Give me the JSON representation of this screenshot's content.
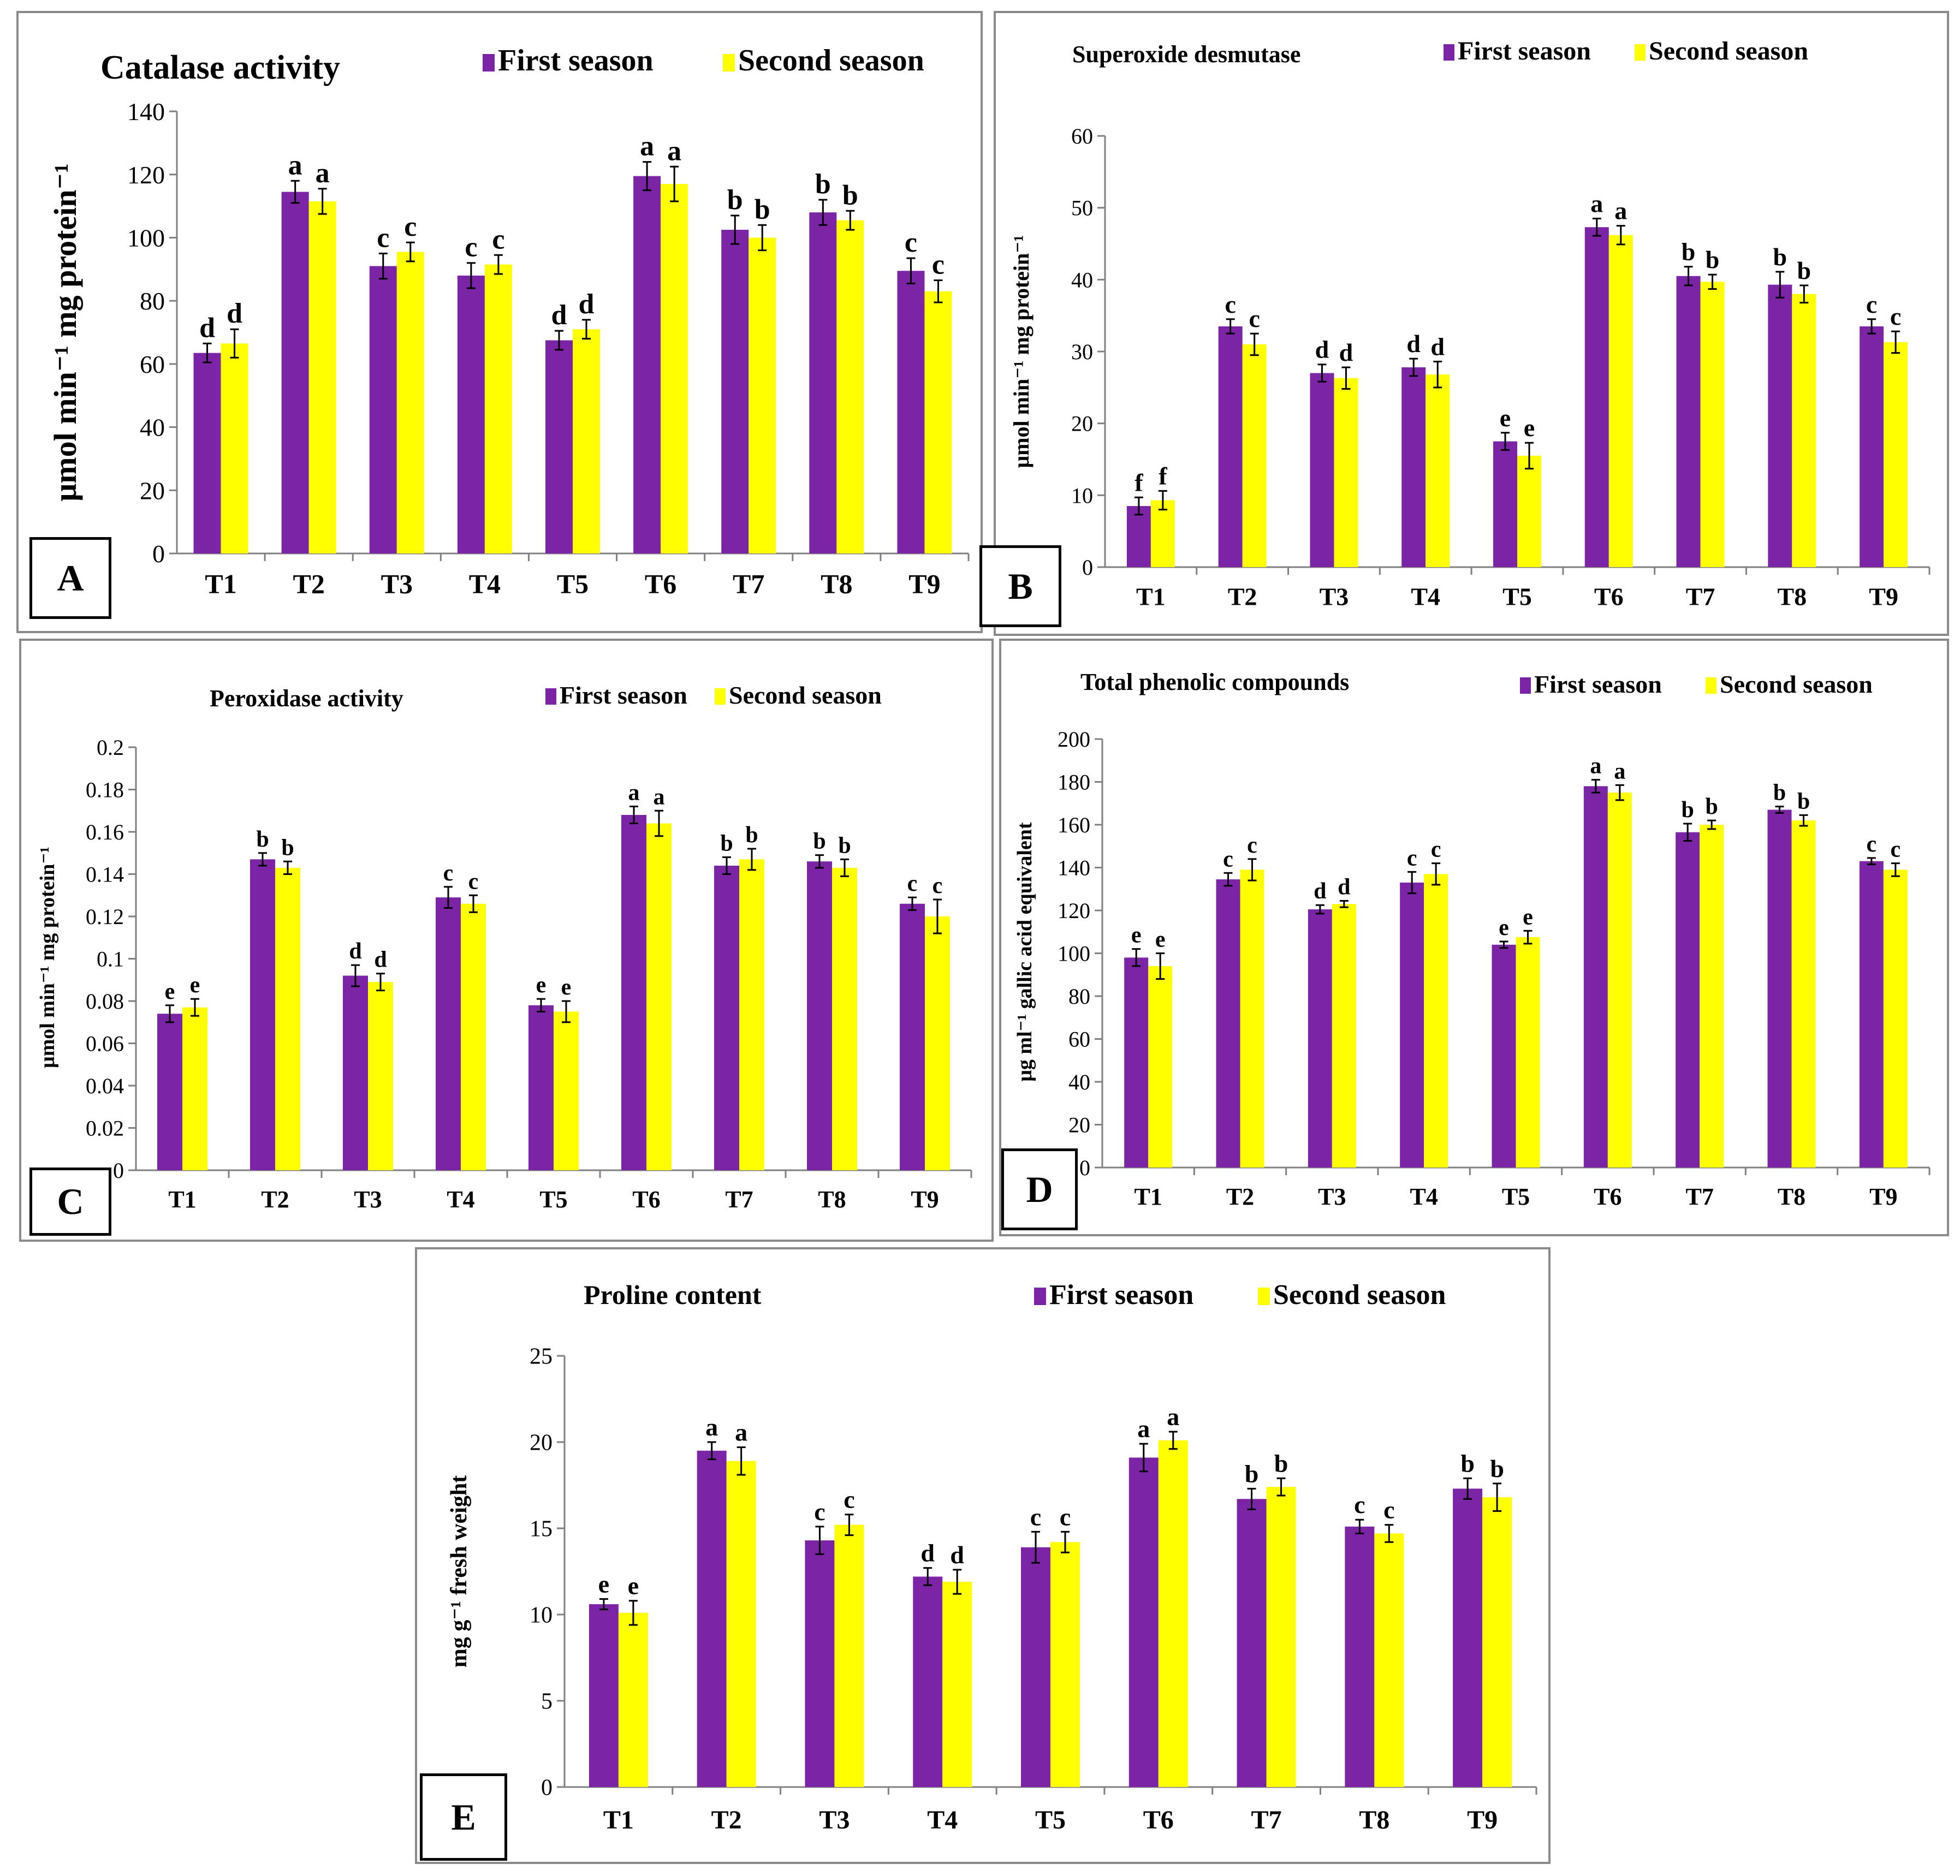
{
  "colors": {
    "first": "#7B24A6",
    "second": "#FFFF00"
  },
  "chart_data": [
    {
      "type": "bar",
      "panel": "A",
      "title": "Catalase activity",
      "ylabel": "μmol min⁻¹ mg protein⁻¹",
      "ylim": [
        0,
        140
      ],
      "yticks": [
        "0",
        "20",
        "40",
        "60",
        "80",
        "100",
        "120",
        "140"
      ],
      "categories": [
        "T1",
        "T2",
        "T3",
        "T4",
        "T5",
        "T6",
        "T7",
        "T8",
        "T9"
      ],
      "series": [
        {
          "name": "First season",
          "values": [
            63.5,
            114.5,
            91,
            88,
            67.5,
            119.5,
            102.5,
            108,
            89.5
          ],
          "errors": [
            3,
            3.5,
            4,
            4,
            3,
            4.5,
            4.5,
            4,
            4
          ],
          "letters": [
            "d",
            "a",
            "c",
            "c",
            "d",
            "a",
            "b",
            "b",
            "c"
          ]
        },
        {
          "name": "Second season",
          "values": [
            66.5,
            111.5,
            95.5,
            91.5,
            71,
            117,
            100,
            105.5,
            83
          ],
          "errors": [
            4.5,
            4,
            3,
            3,
            3,
            5.5,
            4,
            3,
            3.5
          ],
          "letters": [
            "d",
            "a",
            "c",
            "c",
            "d",
            "a",
            "b",
            "b",
            "c"
          ]
        }
      ]
    },
    {
      "type": "bar",
      "panel": "B",
      "title": "Superoxide desmutase",
      "ylabel": "μmol min⁻¹ mg protein⁻¹",
      "ylim": [
        0,
        60
      ],
      "yticks": [
        "0",
        "10",
        "20",
        "30",
        "40",
        "50",
        "60"
      ],
      "categories": [
        "T1",
        "T2",
        "T3",
        "T4",
        "T5",
        "T6",
        "T7",
        "T8",
        "T9"
      ],
      "series": [
        {
          "name": "First season",
          "values": [
            8.5,
            33.5,
            27,
            27.8,
            17.5,
            47.3,
            40.5,
            39.3,
            33.5
          ],
          "errors": [
            1.2,
            1,
            1.2,
            1.2,
            1.2,
            1.2,
            1.3,
            1.8,
            1
          ],
          "letters": [
            "f",
            "c",
            "d",
            "d",
            "e",
            "a",
            "b",
            "b",
            "c"
          ]
        },
        {
          "name": "Second season",
          "values": [
            9.3,
            31,
            26.3,
            26.8,
            15.5,
            46.2,
            39.7,
            38,
            31.3
          ],
          "errors": [
            1.3,
            1.5,
            1.5,
            1.8,
            1.8,
            1.3,
            1,
            1.2,
            1.5
          ],
          "letters": [
            "f",
            "c",
            "d",
            "d",
            "e",
            "a",
            "b",
            "b",
            "c"
          ]
        }
      ]
    },
    {
      "type": "bar",
      "panel": "C",
      "title": "Peroxidase activity",
      "ylabel": "μmol min⁻¹ mg protein⁻¹",
      "ylim": [
        0,
        0.2
      ],
      "yticks": [
        "0",
        "0.02",
        "0.04",
        "0.06",
        "0.08",
        "0.1",
        "0.12",
        "0.14",
        "0.16",
        "0.18",
        "0.2"
      ],
      "categories": [
        "T1",
        "T2",
        "T3",
        "T4",
        "T5",
        "T6",
        "T7",
        "T8",
        "T9"
      ],
      "series": [
        {
          "name": "First season",
          "values": [
            0.074,
            0.147,
            0.092,
            0.129,
            0.078,
            0.168,
            0.144,
            0.146,
            0.126
          ],
          "errors": [
            0.004,
            0.003,
            0.005,
            0.005,
            0.003,
            0.004,
            0.004,
            0.003,
            0.003
          ],
          "letters": [
            "e",
            "b",
            "d",
            "c",
            "e",
            "a",
            "b",
            "b",
            "c"
          ]
        },
        {
          "name": "Second season",
          "values": [
            0.077,
            0.143,
            0.089,
            0.126,
            0.075,
            0.164,
            0.147,
            0.143,
            0.12
          ],
          "errors": [
            0.004,
            0.003,
            0.004,
            0.004,
            0.005,
            0.006,
            0.005,
            0.004,
            0.008
          ],
          "letters": [
            "e",
            "b",
            "d",
            "c",
            "e",
            "a",
            "b",
            "b",
            "c"
          ]
        }
      ]
    },
    {
      "type": "bar",
      "panel": "D",
      "title": "Total phenolic compounds",
      "ylabel": "μg ml⁻¹ gallic acid equivalent",
      "ylim": [
        0,
        200
      ],
      "yticks": [
        "0",
        "20",
        "40",
        "60",
        "80",
        "100",
        "120",
        "140",
        "160",
        "180",
        "200"
      ],
      "categories": [
        "T1",
        "T2",
        "T3",
        "T4",
        "T5",
        "T6",
        "T7",
        "T8",
        "T9"
      ],
      "series": [
        {
          "name": "First season",
          "values": [
            98,
            134.5,
            120.5,
            133,
            104,
            178,
            156.5,
            167,
            143
          ],
          "errors": [
            4,
            3,
            2,
            5,
            1.5,
            3,
            4,
            1.5,
            1.5
          ],
          "letters": [
            "e",
            "c",
            "d",
            "c",
            "e",
            "a",
            "b",
            "b",
            "c"
          ]
        },
        {
          "name": "Second season",
          "values": [
            94,
            139,
            123,
            137,
            107.5,
            175,
            160,
            162,
            139
          ],
          "errors": [
            6,
            5,
            1.5,
            5,
            3,
            3.5,
            2,
            2.5,
            3
          ],
          "letters": [
            "e",
            "c",
            "d",
            "c",
            "e",
            "a",
            "b",
            "b",
            "c"
          ]
        }
      ]
    },
    {
      "type": "bar",
      "panel": "E",
      "title": "Proline content",
      "ylabel": "mg g⁻¹ fresh weight",
      "ylim": [
        0,
        25
      ],
      "yticks": [
        "0",
        "5",
        "10",
        "15",
        "20",
        "25"
      ],
      "categories": [
        "T1",
        "T2",
        "T3",
        "T4",
        "T5",
        "T6",
        "T7",
        "T8",
        "T9"
      ],
      "series": [
        {
          "name": "First season",
          "values": [
            10.6,
            19.5,
            14.3,
            12.2,
            13.9,
            19.1,
            16.7,
            15.1,
            17.3
          ],
          "errors": [
            0.3,
            0.5,
            0.8,
            0.5,
            0.9,
            0.8,
            0.6,
            0.4,
            0.6
          ],
          "letters": [
            "e",
            "a",
            "c",
            "d",
            "c",
            "a",
            "b",
            "c",
            "b"
          ]
        },
        {
          "name": "Second season",
          "values": [
            10.1,
            18.9,
            15.2,
            11.9,
            14.2,
            20.1,
            17.4,
            14.7,
            16.8
          ],
          "errors": [
            0.7,
            0.8,
            0.6,
            0.7,
            0.6,
            0.5,
            0.5,
            0.5,
            0.8
          ],
          "letters": [
            "e",
            "a",
            "c",
            "d",
            "c",
            "a",
            "b",
            "c",
            "b"
          ]
        }
      ]
    }
  ]
}
